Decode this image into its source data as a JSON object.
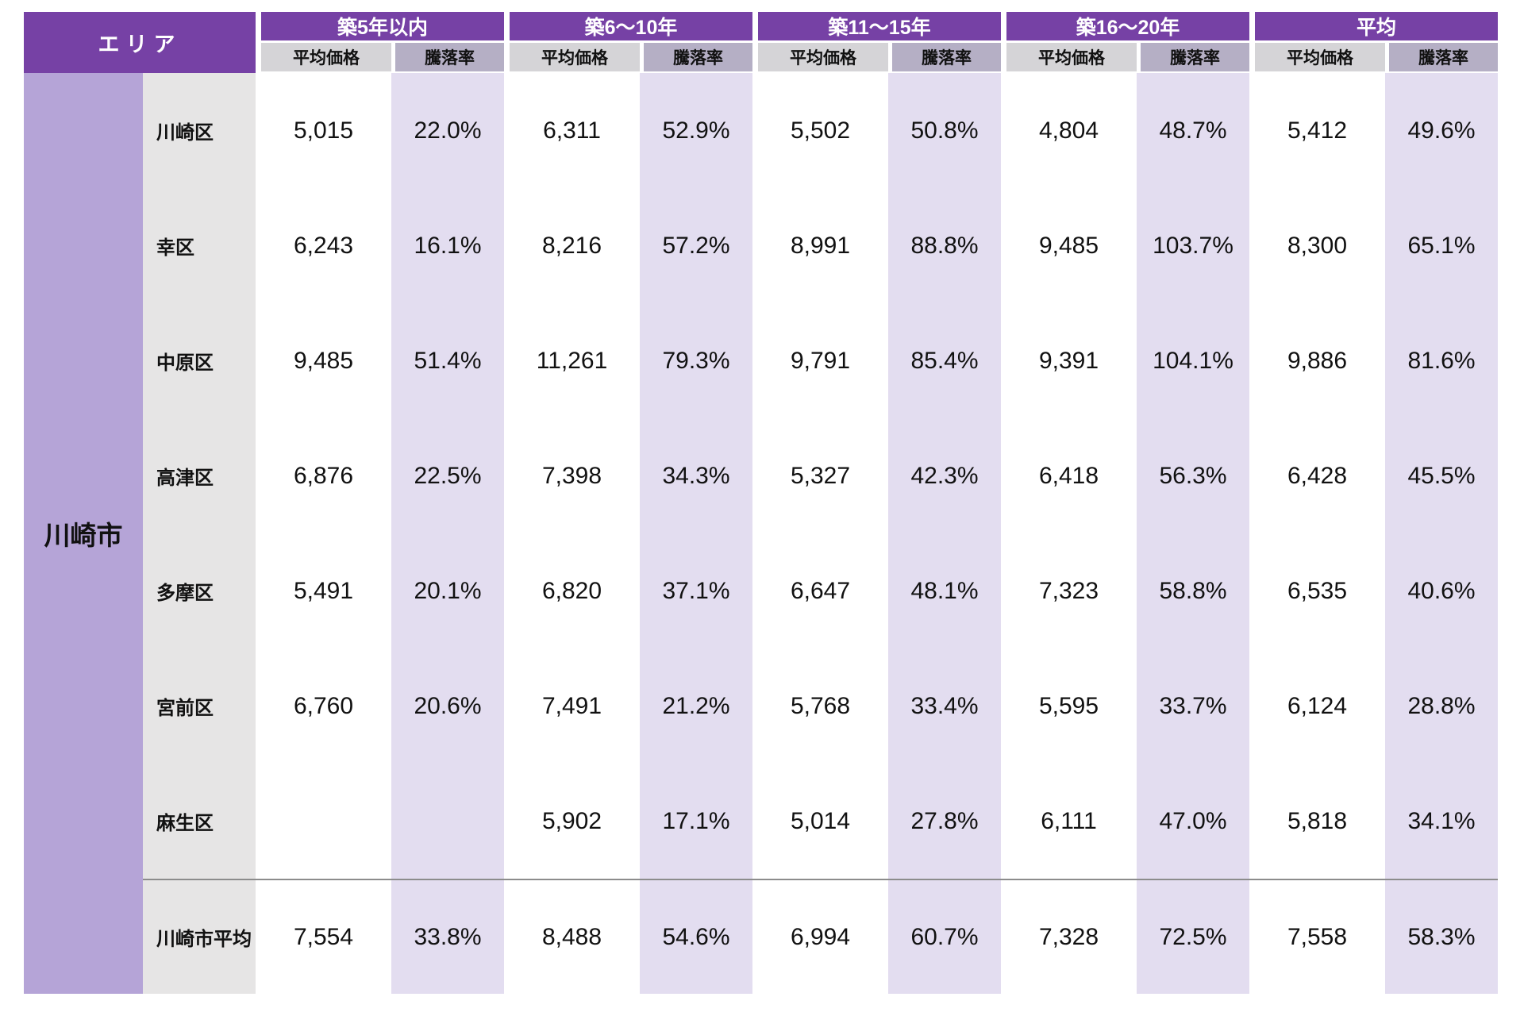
{
  "table": {
    "area_label": "エリア",
    "city": "川崎市",
    "col_groups": [
      "築5年以内",
      "築6〜10年",
      "築11〜15年",
      "築16〜20年",
      "平均"
    ],
    "sub_headers": {
      "price": "平均価格",
      "rate": "騰落率"
    },
    "rows": [
      {
        "ward": "川崎区",
        "cells": [
          "5,015",
          "22.0%",
          "6,311",
          "52.9%",
          "5,502",
          "50.8%",
          "4,804",
          "48.7%",
          "5,412",
          "49.6%"
        ]
      },
      {
        "ward": "幸区",
        "cells": [
          "6,243",
          "16.1%",
          "8,216",
          "57.2%",
          "8,991",
          "88.8%",
          "9,485",
          "103.7%",
          "8,300",
          "65.1%"
        ]
      },
      {
        "ward": "中原区",
        "cells": [
          "9,485",
          "51.4%",
          "11,261",
          "79.3%",
          "9,791",
          "85.4%",
          "9,391",
          "104.1%",
          "9,886",
          "81.6%"
        ]
      },
      {
        "ward": "高津区",
        "cells": [
          "6,876",
          "22.5%",
          "7,398",
          "34.3%",
          "5,327",
          "42.3%",
          "6,418",
          "56.3%",
          "6,428",
          "45.5%"
        ]
      },
      {
        "ward": "多摩区",
        "cells": [
          "5,491",
          "20.1%",
          "6,820",
          "37.1%",
          "6,647",
          "48.1%",
          "7,323",
          "58.8%",
          "6,535",
          "40.6%"
        ]
      },
      {
        "ward": "宮前区",
        "cells": [
          "6,760",
          "20.6%",
          "7,491",
          "21.2%",
          "5,768",
          "33.4%",
          "5,595",
          "33.7%",
          "6,124",
          "28.8%"
        ]
      },
      {
        "ward": "麻生区",
        "cells": [
          "",
          "",
          "5,902",
          "17.1%",
          "5,014",
          "27.8%",
          "6,111",
          "47.0%",
          "5,818",
          "34.1%"
        ]
      },
      {
        "ward": "川崎市平均",
        "summary": true,
        "cells": [
          "7,554",
          "33.8%",
          "8,488",
          "54.6%",
          "6,994",
          "60.7%",
          "7,328",
          "72.5%",
          "7,558",
          "58.3%"
        ]
      }
    ],
    "colors": {
      "header_purple": "#7641A5",
      "header_text": "#FFFFFF",
      "subheader_gray": "#D5D4D7",
      "subheader_lavender": "#B5AFC5",
      "city_purple": "#B5A4D7",
      "ward_gray": "#E6E5E5",
      "rate_lavender": "#E3DDF0",
      "price_white": "#FFFFFF",
      "summary_line": "#8C8C8C"
    }
  },
  "chart_data": {
    "type": "table",
    "title": "",
    "row_header": "エリア",
    "group": "川崎市",
    "column_groups": [
      "築5年以内",
      "築6〜10年",
      "築11〜15年",
      "築16〜20年",
      "平均"
    ],
    "sub_columns": [
      "平均価格",
      "騰落率"
    ],
    "rows": [
      {
        "ward": "川崎区",
        "prices": [
          5015,
          6311,
          5502,
          4804,
          5412
        ],
        "rates_pct": [
          22.0,
          52.9,
          50.8,
          48.7,
          49.6
        ]
      },
      {
        "ward": "幸区",
        "prices": [
          6243,
          8216,
          8991,
          9485,
          8300
        ],
        "rates_pct": [
          16.1,
          57.2,
          88.8,
          103.7,
          65.1
        ]
      },
      {
        "ward": "中原区",
        "prices": [
          9485,
          11261,
          9791,
          9391,
          9886
        ],
        "rates_pct": [
          51.4,
          79.3,
          85.4,
          104.1,
          81.6
        ]
      },
      {
        "ward": "高津区",
        "prices": [
          6876,
          7398,
          5327,
          6418,
          6428
        ],
        "rates_pct": [
          22.5,
          34.3,
          42.3,
          56.3,
          45.5
        ]
      },
      {
        "ward": "多摩区",
        "prices": [
          5491,
          6820,
          6647,
          7323,
          6535
        ],
        "rates_pct": [
          20.1,
          37.1,
          48.1,
          58.8,
          40.6
        ]
      },
      {
        "ward": "宮前区",
        "prices": [
          6760,
          7491,
          5768,
          5595,
          6124
        ],
        "rates_pct": [
          20.6,
          21.2,
          33.4,
          33.7,
          28.8
        ]
      },
      {
        "ward": "麻生区",
        "prices": [
          null,
          5902,
          5014,
          6111,
          5818
        ],
        "rates_pct": [
          null,
          17.1,
          27.8,
          47.0,
          34.1
        ]
      },
      {
        "ward": "川崎市平均",
        "prices": [
          7554,
          8488,
          6994,
          7328,
          7558
        ],
        "rates_pct": [
          33.8,
          54.6,
          60.7,
          72.5,
          58.3
        ]
      }
    ]
  }
}
